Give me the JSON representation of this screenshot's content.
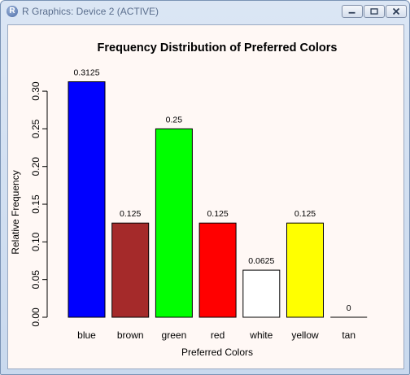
{
  "window": {
    "title": "R Graphics: Device 2 (ACTIVE)",
    "app_icon_letter": "R",
    "controls": [
      "minimize",
      "maximize",
      "close"
    ]
  },
  "colors": {
    "plot_background": "#fff8f5",
    "window_frame": "#c9d9ee"
  },
  "chart_data": {
    "type": "bar",
    "title": "Frequency Distribution of Preferred Colors",
    "xlabel": "Preferred Colors",
    "ylabel": "Relative Frequency",
    "categories": [
      "blue",
      "brown",
      "green",
      "red",
      "white",
      "yellow",
      "tan"
    ],
    "values": [
      0.3125,
      0.125,
      0.25,
      0.125,
      0.0625,
      0.125,
      0
    ],
    "value_labels": [
      "0.3125",
      "0.125",
      "0.25",
      "0.125",
      "0.0625",
      "0.125",
      "0"
    ],
    "bar_colors": [
      "#0000ff",
      "#a52a2a",
      "#00ff00",
      "#ff0000",
      "#ffffff",
      "#ffff00",
      "#d2b48c"
    ],
    "yticks": [
      0,
      0.05,
      0.1,
      0.15,
      0.2,
      0.25,
      0.3
    ],
    "ytick_labels": [
      "0.00",
      "0.05",
      "0.10",
      "0.15",
      "0.20",
      "0.25",
      "0.30"
    ],
    "ylim": [
      0,
      0.33
    ],
    "grid": false,
    "legend": "none"
  }
}
